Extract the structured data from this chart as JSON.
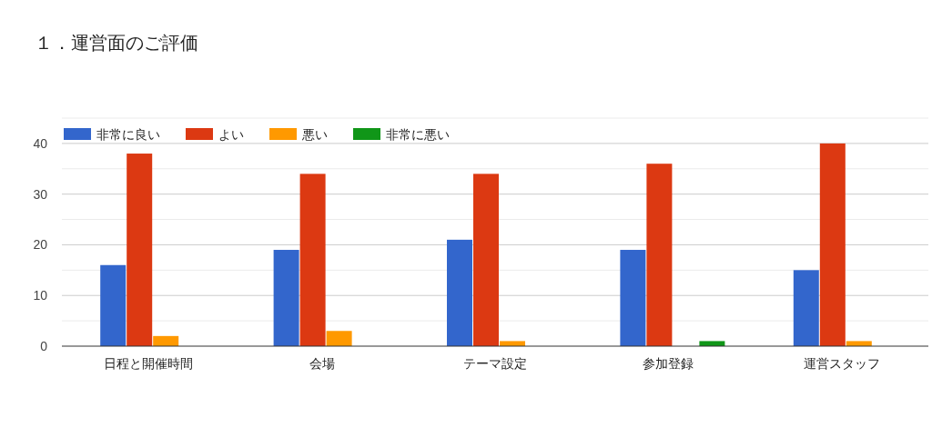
{
  "chart_data": {
    "type": "bar",
    "title": "１．運営面のご評価",
    "categories": [
      "日程と開催時間",
      "会場",
      "テーマ設定",
      "参加登録",
      "運営スタッフ"
    ],
    "series": [
      {
        "name": "非常に良い",
        "color": "#3366cc",
        "values": [
          16,
          19,
          21,
          19,
          15
        ]
      },
      {
        "name": "よい",
        "color": "#dc3912",
        "values": [
          38,
          34,
          34,
          36,
          40
        ]
      },
      {
        "name": "悪い",
        "color": "#ff9900",
        "values": [
          2,
          3,
          1,
          0,
          1
        ]
      },
      {
        "name": "非常に悪い",
        "color": "#109618",
        "values": [
          0,
          0,
          0,
          1,
          0
        ]
      }
    ],
    "ylim": [
      0,
      45
    ],
    "yticks": [
      0,
      {
        "value": 5,
        "label": null
      },
      10,
      {
        "value": 15,
        "label": null
      },
      20,
      {
        "value": 25,
        "label": null
      },
      30,
      {
        "value": 35,
        "label": null
      },
      40,
      {
        "value": 45,
        "label": null
      }
    ],
    "grid": true,
    "legend": "top left"
  }
}
